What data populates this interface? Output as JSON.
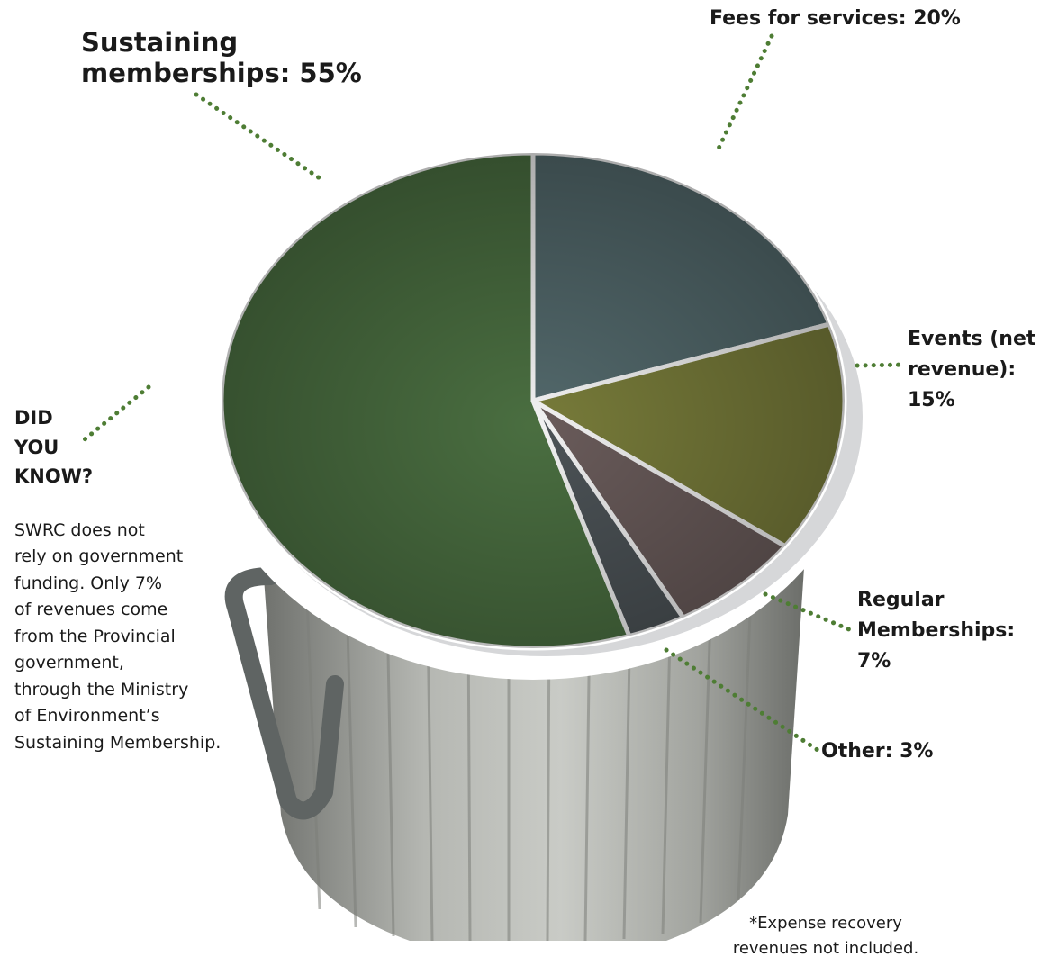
{
  "chart_data": {
    "type": "pie",
    "categories": [
      "Sustaining memberships",
      "Fees for services",
      "Events (net revenue)",
      "Regular Memberships",
      "Other"
    ],
    "values": [
      55,
      20,
      15,
      7,
      3
    ],
    "unit": "%",
    "labels": [
      {
        "lines": [
          "Sustaining",
          "memberships: 55%"
        ]
      },
      {
        "lines": [
          "Fees for services:  20%"
        ]
      },
      {
        "lines": [
          "Events (net",
          "revenue):",
          "15%"
        ]
      },
      {
        "lines": [
          "Regular",
          "Memberships:",
          "7%"
        ]
      },
      {
        "lines": [
          "Other: 3%"
        ]
      }
    ],
    "colors": [
      "#5e9a56",
      "#6f8fa8",
      "#b7b449",
      "#9b7786",
      "#62667f"
    ]
  },
  "sidebar": {
    "title_lines": [
      "DID",
      "YOU",
      "KNOW?"
    ],
    "body_lines": [
      "SWRC does not",
      "rely on government",
      "funding. Only 7%",
      "of revenues come",
      "from the Provincial",
      "government,",
      "through the Ministry",
      "of Environment’s",
      "Sustaining Membership."
    ]
  },
  "footnote": {
    "lines": [
      "*Expense recovery",
      "revenues not included."
    ]
  },
  "colors": {
    "leader_dots": "#4e7d34",
    "can_body": "#a7a9a4",
    "can_body_dark": "#6d6f6b",
    "slice_divider": "#ffffff"
  }
}
